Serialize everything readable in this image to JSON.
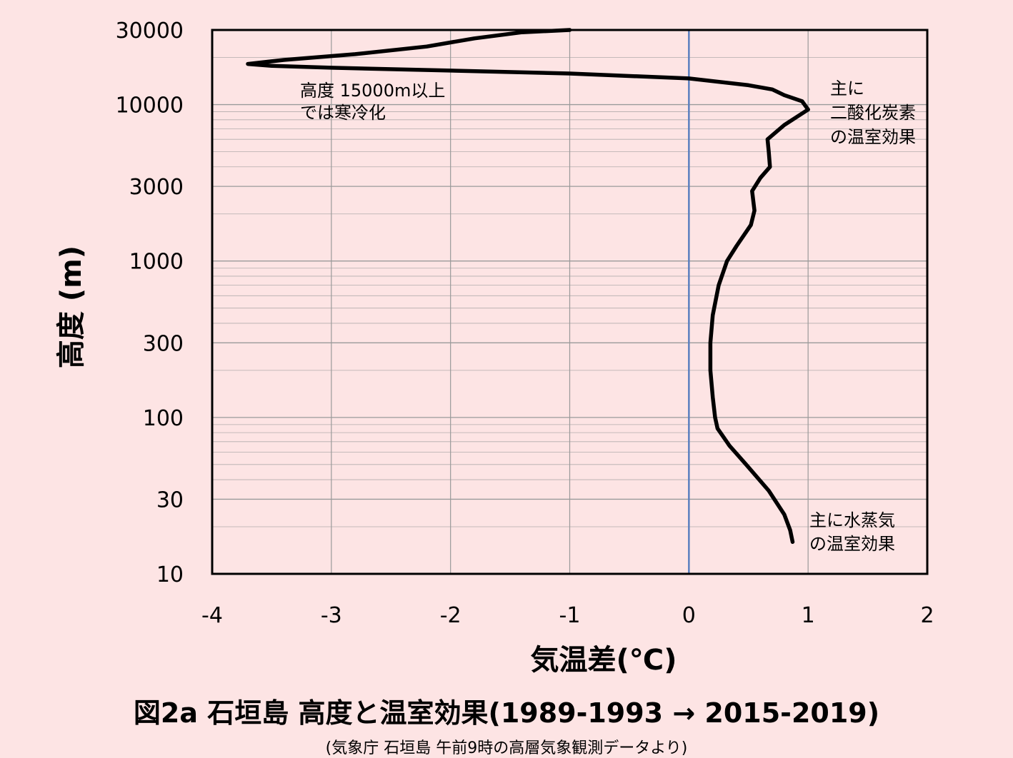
{
  "chart_data": {
    "type": "line",
    "xlabel": "気温差(℃)",
    "ylabel": "高度 (m)",
    "xlim": [
      -4,
      2
    ],
    "ylim": [
      10,
      30000
    ],
    "y_scale": "log",
    "grid": true,
    "x_ticks": [
      "-4",
      "-3",
      "-2",
      "-1",
      "0",
      "1",
      "2"
    ],
    "y_ticks": [
      {
        "value": 10,
        "label": "10"
      },
      {
        "value": 30,
        "label": "30"
      },
      {
        "value": 100,
        "label": "100"
      },
      {
        "value": 300,
        "label": "300"
      },
      {
        "value": 1000,
        "label": "1000"
      },
      {
        "value": 3000,
        "label": "3000"
      },
      {
        "value": 10000,
        "label": "10000"
      },
      {
        "value": 30000,
        "label": "30000"
      }
    ],
    "reference_line": {
      "x": 0,
      "color": "#5b7fbf"
    },
    "series": [
      {
        "color": "#000000",
        "points": [
          {
            "x": 0.87,
            "y": 16
          },
          {
            "x": 0.85,
            "y": 19
          },
          {
            "x": 0.8,
            "y": 24
          },
          {
            "x": 0.67,
            "y": 34
          },
          {
            "x": 0.48,
            "y": 50
          },
          {
            "x": 0.34,
            "y": 66
          },
          {
            "x": 0.24,
            "y": 85
          },
          {
            "x": 0.22,
            "y": 100
          },
          {
            "x": 0.2,
            "y": 135
          },
          {
            "x": 0.18,
            "y": 200
          },
          {
            "x": 0.18,
            "y": 300
          },
          {
            "x": 0.2,
            "y": 450
          },
          {
            "x": 0.25,
            "y": 700
          },
          {
            "x": 0.32,
            "y": 1000
          },
          {
            "x": 0.4,
            "y": 1250
          },
          {
            "x": 0.52,
            "y": 1700
          },
          {
            "x": 0.55,
            "y": 2100
          },
          {
            "x": 0.53,
            "y": 2800
          },
          {
            "x": 0.6,
            "y": 3400
          },
          {
            "x": 0.68,
            "y": 4000
          },
          {
            "x": 0.67,
            "y": 5000
          },
          {
            "x": 0.66,
            "y": 6000
          },
          {
            "x": 0.8,
            "y": 7400
          },
          {
            "x": 1.0,
            "y": 9300
          },
          {
            "x": 0.95,
            "y": 10500
          },
          {
            "x": 0.8,
            "y": 11500
          },
          {
            "x": 0.7,
            "y": 12500
          },
          {
            "x": 0.5,
            "y": 13300
          },
          {
            "x": 0.0,
            "y": 14700
          },
          {
            "x": -1.0,
            "y": 15800
          },
          {
            "x": -2.0,
            "y": 16500
          },
          {
            "x": -3.0,
            "y": 17200
          },
          {
            "x": -3.5,
            "y": 17700
          },
          {
            "x": -3.7,
            "y": 18200
          },
          {
            "x": -3.4,
            "y": 19300
          },
          {
            "x": -2.8,
            "y": 21000
          },
          {
            "x": -2.2,
            "y": 23500
          },
          {
            "x": -1.8,
            "y": 26500
          },
          {
            "x": -1.4,
            "y": 29000
          },
          {
            "x": -1.0,
            "y": 30000
          }
        ]
      }
    ],
    "annotations": [
      {
        "lines": [
          "高度 15000m以上",
          "では寒冷化"
        ]
      },
      {
        "lines": [
          "主に",
          "二酸化炭素",
          "の温室効果"
        ]
      },
      {
        "lines": [
          "主に水蒸気",
          "の温室効果"
        ]
      }
    ]
  },
  "caption": {
    "title": "図2a 石垣島 高度と温室効果(1989-1993 → 2015-2019)",
    "source": "(気象庁 石垣島 午前9時の高層気象観測データより)"
  },
  "colors": {
    "background": "#fde4e4",
    "plot_background": "#fde4e4",
    "grid": "#9a9a9a",
    "curve": "#000000",
    "zero_line": "#5b7fbf"
  }
}
